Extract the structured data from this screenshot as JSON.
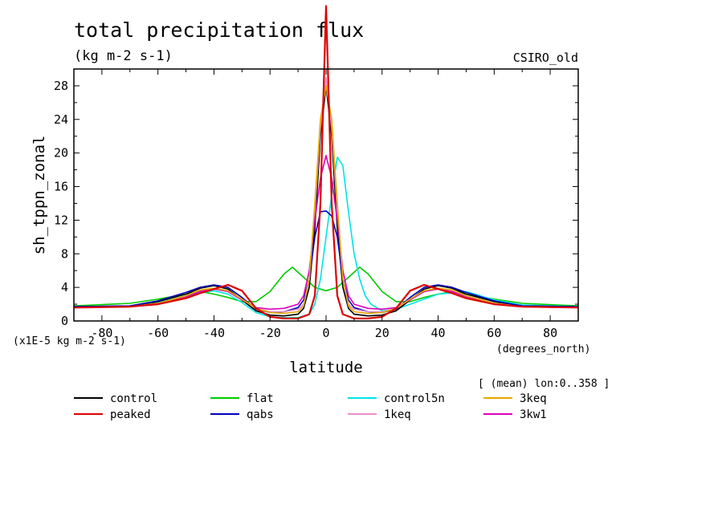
{
  "chart_data": {
    "type": "line",
    "title": "total precipitation flux",
    "subtitle": "(kg m-2 s-1)",
    "model_label": "CSIRO_old",
    "ylabel": "sh_tppn_zonal",
    "y_scale_label": "(x1E-5 kg m-2 s-1)",
    "xlabel": "latitude",
    "x_units_label": "(degrees_north)",
    "averaging_note": "[ (mean) lon:0..358 ]",
    "xlim": [
      -90,
      90
    ],
    "ylim": [
      0,
      30
    ],
    "x_ticks": [
      -80,
      -60,
      -40,
      -20,
      0,
      20,
      40,
      60,
      80
    ],
    "y_ticks": [
      0,
      4,
      8,
      12,
      16,
      20,
      24,
      28
    ],
    "grid": false,
    "legend_position": "bottom",
    "series": [
      {
        "name": "control",
        "color": "#000000",
        "x": [
          -90,
          -70,
          -60,
          -50,
          -45,
          -40,
          -35,
          -30,
          -25,
          -20,
          -15,
          -10,
          -8,
          -6,
          -4,
          -2,
          0,
          2,
          4,
          6,
          8,
          10,
          15,
          20,
          25,
          30,
          35,
          40,
          45,
          50,
          60,
          70,
          90
        ],
        "y": [
          1.7,
          1.8,
          2.3,
          3.2,
          3.9,
          4.2,
          3.8,
          2.5,
          1.2,
          0.7,
          0.6,
          0.8,
          1.5,
          4,
          11,
          22,
          28,
          22,
          11,
          4,
          1.5,
          0.8,
          0.6,
          0.7,
          1.2,
          2.5,
          3.8,
          4.2,
          3.9,
          3.2,
          2.3,
          1.8,
          1.7
        ]
      },
      {
        "name": "flat",
        "color": "#00cc00",
        "x": [
          -90,
          -70,
          -60,
          -50,
          -45,
          -40,
          -35,
          -30,
          -25,
          -20,
          -15,
          -12,
          -8,
          -4,
          0,
          4,
          8,
          12,
          15,
          20,
          25,
          30,
          35,
          40,
          45,
          50,
          60,
          70,
          90
        ],
        "y": [
          1.8,
          2.1,
          2.6,
          3.2,
          3.5,
          3.2,
          2.8,
          2.3,
          2.3,
          3.5,
          5.6,
          6.4,
          5.2,
          4.0,
          3.6,
          4.0,
          5.2,
          6.4,
          5.6,
          3.5,
          2.3,
          2.3,
          2.8,
          3.2,
          3.5,
          3.2,
          2.6,
          2.1,
          1.8
        ]
      },
      {
        "name": "control5n",
        "color": "#00e5e5",
        "x": [
          -90,
          -70,
          -60,
          -50,
          -40,
          -35,
          -30,
          -25,
          -20,
          -15,
          -10,
          -6,
          -4,
          -2,
          0,
          2,
          4,
          6,
          8,
          10,
          12,
          14,
          16,
          20,
          25,
          30,
          40,
          50,
          60,
          70,
          90
        ],
        "y": [
          1.7,
          1.8,
          2.2,
          3.0,
          3.6,
          3.2,
          2.2,
          1.0,
          0.5,
          0.4,
          0.4,
          0.8,
          2,
          5,
          10,
          15,
          19.5,
          18.5,
          13,
          8,
          5,
          3,
          2.0,
          1.2,
          1.4,
          2.0,
          3.2,
          3.5,
          2.5,
          1.9,
          1.7
        ]
      },
      {
        "name": "3keq",
        "color": "#e6a800",
        "x": [
          -90,
          -70,
          -60,
          -50,
          -45,
          -40,
          -35,
          -30,
          -25,
          -20,
          -15,
          -10,
          -8,
          -6,
          -4,
          -2,
          0,
          2,
          4,
          6,
          8,
          10,
          15,
          20,
          25,
          30,
          35,
          40,
          45,
          50,
          60,
          70,
          90
        ],
        "y": [
          1.6,
          1.7,
          2.1,
          3.0,
          3.7,
          3.9,
          3.6,
          2.6,
          1.5,
          1.0,
          0.9,
          1.1,
          1.8,
          5,
          14,
          24,
          28,
          24,
          14,
          5,
          1.8,
          1.1,
          0.9,
          1.0,
          1.5,
          2.6,
          3.6,
          3.9,
          3.7,
          3.0,
          2.1,
          1.7,
          1.6
        ]
      },
      {
        "name": "peaked",
        "color": "#dd0000",
        "x": [
          -90,
          -70,
          -60,
          -50,
          -45,
          -40,
          -35,
          -30,
          -25,
          -20,
          -15,
          -10,
          -6,
          -4,
          -2,
          -1,
          0,
          1,
          2,
          4,
          6,
          10,
          15,
          20,
          25,
          30,
          35,
          40,
          45,
          50,
          60,
          70,
          90
        ],
        "y": [
          1.6,
          1.7,
          2.0,
          2.7,
          3.3,
          3.8,
          4.3,
          3.6,
          1.5,
          0.5,
          0.3,
          0.3,
          0.8,
          3,
          14,
          26,
          37.5,
          26,
          14,
          3,
          0.8,
          0.3,
          0.3,
          0.5,
          1.5,
          3.6,
          4.3,
          3.8,
          3.3,
          2.7,
          2.0,
          1.7,
          1.6
        ]
      },
      {
        "name": "qabs",
        "color": "#0000bb",
        "x": [
          -90,
          -70,
          -60,
          -50,
          -45,
          -40,
          -35,
          -30,
          -25,
          -20,
          -15,
          -10,
          -8,
          -6,
          -4,
          -2,
          0,
          2,
          4,
          6,
          8,
          10,
          15,
          20,
          25,
          30,
          35,
          40,
          45,
          50,
          60,
          70,
          90
        ],
        "y": [
          1.7,
          1.8,
          2.4,
          3.4,
          4.0,
          4.3,
          4.0,
          2.8,
          1.4,
          1.0,
          1.1,
          1.6,
          2.5,
          5,
          10,
          13,
          13.1,
          12.5,
          10,
          5,
          2.5,
          1.6,
          1.1,
          1.0,
          1.4,
          2.8,
          4.0,
          4.3,
          4.0,
          3.4,
          2.4,
          1.8,
          1.7
        ]
      },
      {
        "name": "1keq",
        "color": "#e890c8",
        "x": [
          -90,
          -70,
          -60,
          -50,
          -45,
          -40,
          -35,
          -30,
          -25,
          -20,
          -15,
          -10,
          -8,
          -6,
          -4,
          -2,
          0,
          2,
          4,
          6,
          8,
          10,
          15,
          20,
          25,
          30,
          35,
          40,
          45,
          50,
          60,
          70,
          90
        ],
        "y": [
          1.6,
          1.7,
          2.1,
          3.0,
          3.6,
          3.9,
          3.6,
          2.6,
          1.5,
          1.1,
          1.1,
          1.4,
          2,
          5,
          13,
          23,
          29,
          23,
          13,
          5,
          2,
          1.4,
          1.1,
          1.1,
          1.5,
          2.6,
          3.6,
          3.9,
          3.6,
          3.0,
          2.1,
          1.7,
          1.6
        ]
      },
      {
        "name": "3kw1",
        "color": "#dd00bb",
        "x": [
          -90,
          -70,
          -60,
          -50,
          -45,
          -40,
          -35,
          -30,
          -25,
          -20,
          -15,
          -10,
          -8,
          -6,
          -4,
          -2,
          0,
          2,
          4,
          6,
          8,
          10,
          15,
          20,
          25,
          30,
          35,
          40,
          45,
          50,
          60,
          70,
          90
        ],
        "y": [
          1.6,
          1.7,
          2.0,
          2.9,
          3.5,
          3.8,
          3.5,
          2.5,
          1.6,
          1.4,
          1.5,
          2.0,
          3,
          6,
          12,
          17,
          19.7,
          17,
          12,
          6,
          3,
          2.0,
          1.5,
          1.4,
          1.6,
          2.5,
          3.5,
          3.8,
          3.5,
          2.9,
          2.0,
          1.7,
          1.6
        ]
      }
    ]
  }
}
